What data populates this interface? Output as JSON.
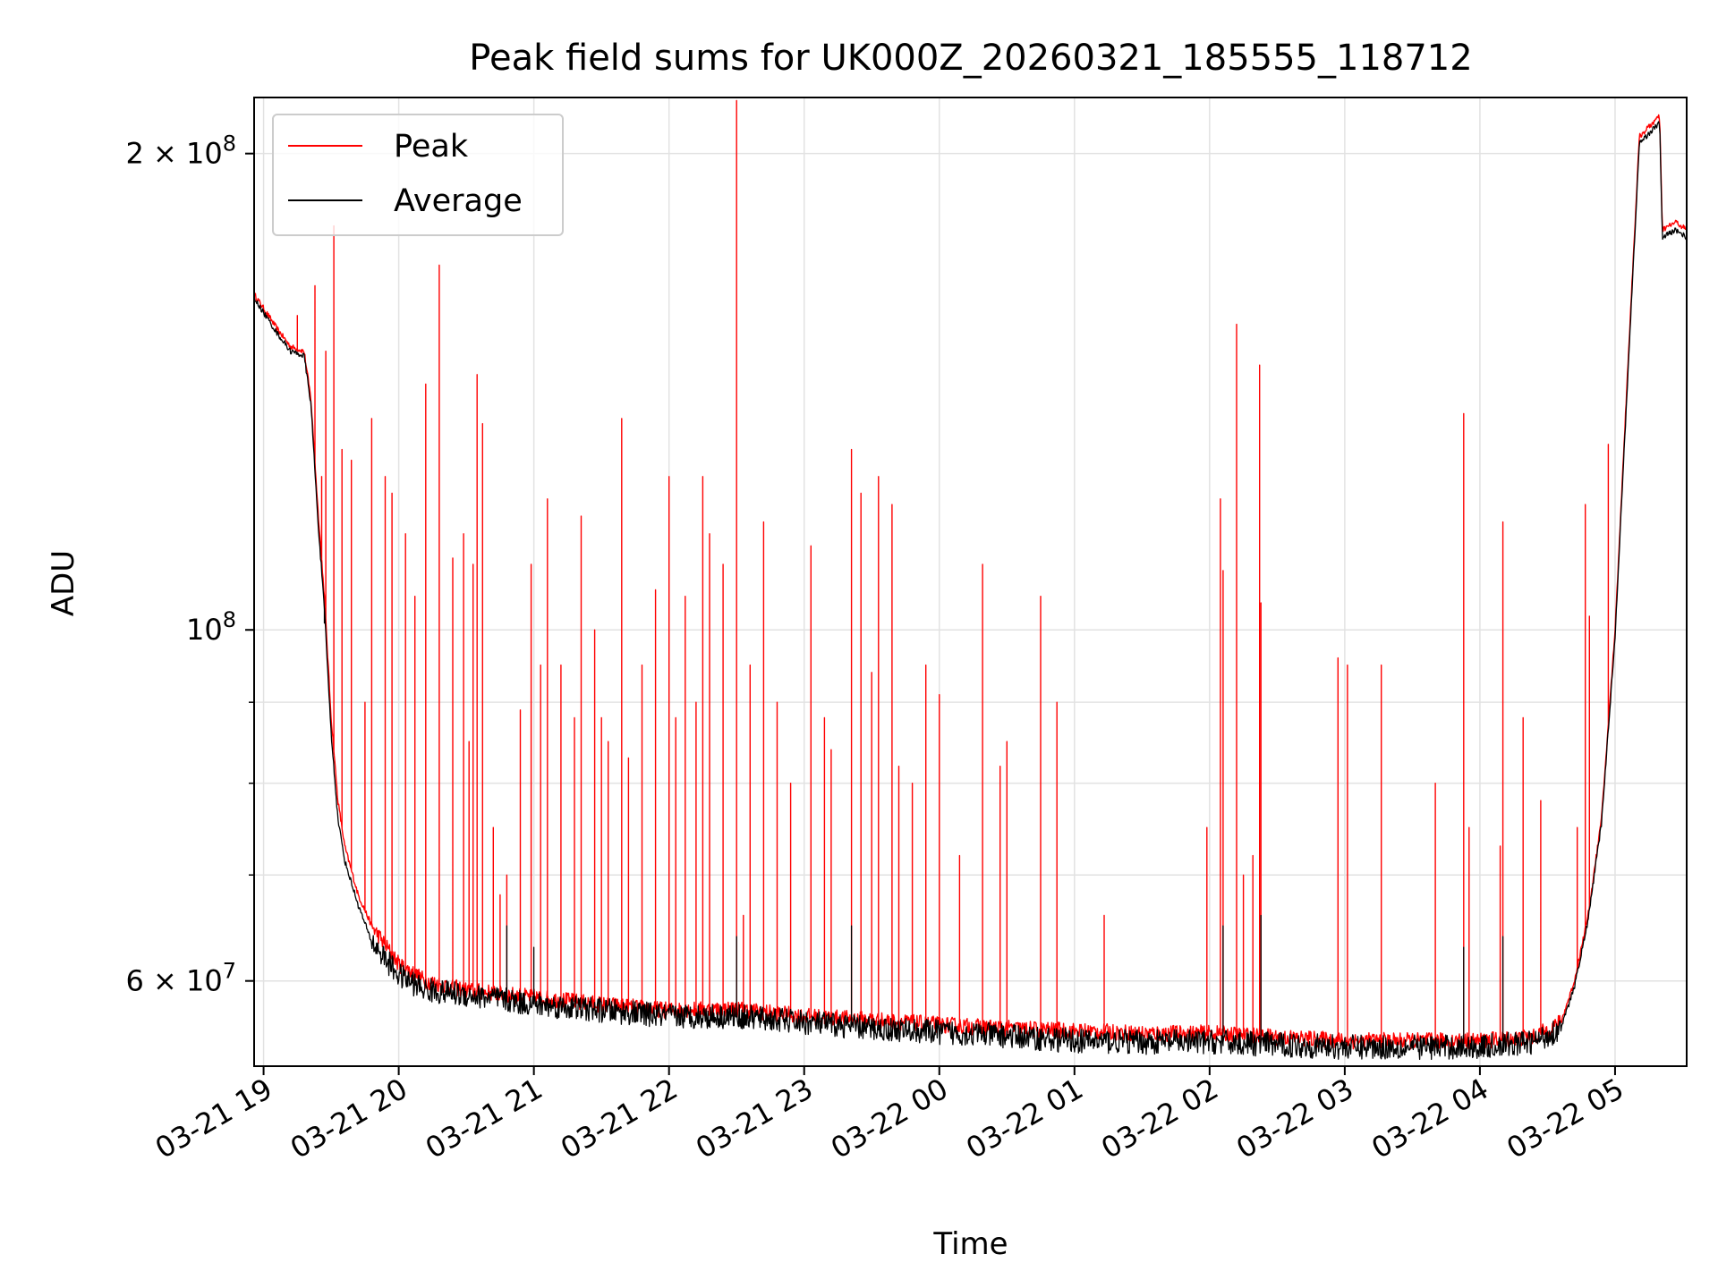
{
  "chart_data": {
    "type": "line",
    "title": "Peak field sums for UK000Z_20260321_185555_118712",
    "xlabel": "Time",
    "ylabel": "ADU",
    "yscale": "log",
    "grid": true,
    "legend_position": "upper-left",
    "x_unit": "hours since 03-21 19:00",
    "xlim": [
      -0.07,
      10.53
    ],
    "ylim": [
      53000000,
      217000000
    ],
    "x_ticks": [
      {
        "value": 0,
        "label": "03-21 19"
      },
      {
        "value": 1,
        "label": "03-21 20"
      },
      {
        "value": 2,
        "label": "03-21 21"
      },
      {
        "value": 3,
        "label": "03-21 22"
      },
      {
        "value": 4,
        "label": "03-21 23"
      },
      {
        "value": 5,
        "label": "03-22 00"
      },
      {
        "value": 6,
        "label": "03-22 01"
      },
      {
        "value": 7,
        "label": "03-22 02"
      },
      {
        "value": 8,
        "label": "03-22 03"
      },
      {
        "value": 9,
        "label": "03-22 04"
      },
      {
        "value": 10,
        "label": "03-22 05"
      }
    ],
    "y_major_ticks": [
      {
        "value": 60000000,
        "base": "6 × 10",
        "exp": "7"
      },
      {
        "value": 100000000,
        "base": "10",
        "exp": "8"
      },
      {
        "value": 200000000,
        "base": "2 × 10",
        "exp": "8"
      }
    ],
    "y_minor_ticks": [
      70000000,
      80000000,
      90000000
    ],
    "series": [
      {
        "name": "Peak",
        "color": "#ff0000",
        "baseline": [
          [
            -0.07,
            163000000
          ],
          [
            0.1,
            155000000
          ],
          [
            0.2,
            151000000
          ],
          [
            0.3,
            150000000
          ],
          [
            0.35,
            140000000
          ],
          [
            0.4,
            120000000
          ],
          [
            0.45,
            105000000
          ],
          [
            0.5,
            88000000
          ],
          [
            0.55,
            78000000
          ],
          [
            0.6,
            73000000
          ],
          [
            0.7,
            68000000
          ],
          [
            0.8,
            65000000
          ],
          [
            1.0,
            61500000
          ],
          [
            1.2,
            60000000
          ],
          [
            1.5,
            59200000
          ],
          [
            2.0,
            58600000
          ],
          [
            2.5,
            58000000
          ],
          [
            3.0,
            57500000
          ],
          [
            3.5,
            57600000
          ],
          [
            4.0,
            57000000
          ],
          [
            4.5,
            56700000
          ],
          [
            5.0,
            56300000
          ],
          [
            5.5,
            56000000
          ],
          [
            6.0,
            55800000
          ],
          [
            6.5,
            55600000
          ],
          [
            7.0,
            55600000
          ],
          [
            7.5,
            55300000
          ],
          [
            8.0,
            55000000
          ],
          [
            8.5,
            55000000
          ],
          [
            9.0,
            55000000
          ],
          [
            9.4,
            55300000
          ],
          [
            9.6,
            56500000
          ],
          [
            9.7,
            60000000
          ],
          [
            9.8,
            66000000
          ],
          [
            9.9,
            76000000
          ],
          [
            10.0,
            100000000
          ],
          [
            10.1,
            150000000
          ],
          [
            10.18,
            205000000
          ],
          [
            10.3,
            210000000
          ],
          [
            10.33,
            211000000
          ],
          [
            10.35,
            179000000
          ],
          [
            10.45,
            181000000
          ],
          [
            10.53,
            179000000
          ]
        ],
        "spikes": [
          [
            0.25,
            158000000
          ],
          [
            0.38,
            165000000
          ],
          [
            0.43,
            125000000
          ],
          [
            0.46,
            150000000
          ],
          [
            0.52,
            180000000
          ],
          [
            0.58,
            130000000
          ],
          [
            0.65,
            128000000
          ],
          [
            0.75,
            90000000
          ],
          [
            0.8,
            136000000
          ],
          [
            0.9,
            125000000
          ],
          [
            0.95,
            122000000
          ],
          [
            1.05,
            115000000
          ],
          [
            1.12,
            105000000
          ],
          [
            1.2,
            143000000
          ],
          [
            1.3,
            170000000
          ],
          [
            1.4,
            111000000
          ],
          [
            1.48,
            115000000
          ],
          [
            1.52,
            85000000
          ],
          [
            1.55,
            110000000
          ],
          [
            1.58,
            145000000
          ],
          [
            1.62,
            135000000
          ],
          [
            1.7,
            75000000
          ],
          [
            1.75,
            68000000
          ],
          [
            1.8,
            70000000
          ],
          [
            1.9,
            89000000
          ],
          [
            1.98,
            110000000
          ],
          [
            2.05,
            95000000
          ],
          [
            2.1,
            121000000
          ],
          [
            2.2,
            95000000
          ],
          [
            2.3,
            88000000
          ],
          [
            2.35,
            118000000
          ],
          [
            2.45,
            100000000
          ],
          [
            2.5,
            88000000
          ],
          [
            2.55,
            85000000
          ],
          [
            2.65,
            136000000
          ],
          [
            2.7,
            83000000
          ],
          [
            2.8,
            95000000
          ],
          [
            2.9,
            106000000
          ],
          [
            3.0,
            125000000
          ],
          [
            3.05,
            88000000
          ],
          [
            3.12,
            105000000
          ],
          [
            3.2,
            90000000
          ],
          [
            3.25,
            125000000
          ],
          [
            3.3,
            115000000
          ],
          [
            3.4,
            110000000
          ],
          [
            3.5,
            216000000
          ],
          [
            3.55,
            66000000
          ],
          [
            3.6,
            95000000
          ],
          [
            3.7,
            117000000
          ],
          [
            3.8,
            90000000
          ],
          [
            3.9,
            80000000
          ],
          [
            4.05,
            113000000
          ],
          [
            4.15,
            88000000
          ],
          [
            4.2,
            84000000
          ],
          [
            4.35,
            130000000
          ],
          [
            4.42,
            122000000
          ],
          [
            4.5,
            94000000
          ],
          [
            4.55,
            125000000
          ],
          [
            4.65,
            120000000
          ],
          [
            4.7,
            82000000
          ],
          [
            4.8,
            80000000
          ],
          [
            4.9,
            95000000
          ],
          [
            5.0,
            91000000
          ],
          [
            5.15,
            72000000
          ],
          [
            5.32,
            110000000
          ],
          [
            5.45,
            82000000
          ],
          [
            5.5,
            85000000
          ],
          [
            5.75,
            105000000
          ],
          [
            5.87,
            90000000
          ],
          [
            6.22,
            66000000
          ],
          [
            6.98,
            75000000
          ],
          [
            7.08,
            121000000
          ],
          [
            7.1,
            109000000
          ],
          [
            7.2,
            156000000
          ],
          [
            7.25,
            70000000
          ],
          [
            7.32,
            72000000
          ],
          [
            7.37,
            147000000
          ],
          [
            7.38,
            104000000
          ],
          [
            7.95,
            96000000
          ],
          [
            8.02,
            95000000
          ],
          [
            8.27,
            95000000
          ],
          [
            8.67,
            80000000
          ],
          [
            8.88,
            137000000
          ],
          [
            8.92,
            75000000
          ],
          [
            9.15,
            73000000
          ],
          [
            9.17,
            117000000
          ],
          [
            9.32,
            88000000
          ],
          [
            9.45,
            78000000
          ],
          [
            9.72,
            75000000
          ],
          [
            9.78,
            120000000
          ],
          [
            9.81,
            102000000
          ],
          [
            9.95,
            131000000
          ]
        ]
      },
      {
        "name": "Average",
        "color": "#000000",
        "baseline": [
          [
            -0.07,
            162000000
          ],
          [
            0.1,
            154000000
          ],
          [
            0.2,
            150000000
          ],
          [
            0.3,
            149000000
          ],
          [
            0.35,
            139000000
          ],
          [
            0.4,
            118000000
          ],
          [
            0.45,
            103000000
          ],
          [
            0.5,
            86000000
          ],
          [
            0.55,
            76000000
          ],
          [
            0.6,
            71500000
          ],
          [
            0.7,
            67000000
          ],
          [
            0.8,
            63500000
          ],
          [
            1.0,
            60500000
          ],
          [
            1.2,
            59200000
          ],
          [
            1.5,
            58800000
          ],
          [
            2.0,
            58000000
          ],
          [
            2.5,
            57500000
          ],
          [
            3.0,
            57000000
          ],
          [
            3.5,
            57000000
          ],
          [
            4.0,
            56500000
          ],
          [
            4.5,
            56000000
          ],
          [
            5.0,
            55700000
          ],
          [
            5.5,
            55400000
          ],
          [
            6.0,
            55000000
          ],
          [
            6.5,
            54900000
          ],
          [
            7.0,
            54900000
          ],
          [
            7.5,
            54700000
          ],
          [
            8.0,
            54500000
          ],
          [
            8.5,
            54500000
          ],
          [
            9.0,
            54500000
          ],
          [
            9.4,
            54900000
          ],
          [
            9.6,
            56000000
          ],
          [
            9.7,
            59500000
          ],
          [
            9.8,
            65500000
          ],
          [
            9.9,
            75500000
          ],
          [
            10.0,
            99000000
          ],
          [
            10.1,
            148000000
          ],
          [
            10.18,
            203000000
          ],
          [
            10.3,
            208000000
          ],
          [
            10.33,
            209000000
          ],
          [
            10.35,
            177000000
          ],
          [
            10.45,
            179000000
          ],
          [
            10.53,
            177000000
          ]
        ],
        "spikes": [
          [
            0.45,
            101000000
          ],
          [
            1.8,
            65000000
          ],
          [
            2.0,
            63000000
          ],
          [
            3.5,
            64000000
          ],
          [
            4.35,
            65000000
          ],
          [
            7.1,
            65000000
          ],
          [
            7.38,
            66000000
          ],
          [
            8.88,
            63000000
          ],
          [
            9.17,
            64000000
          ]
        ]
      }
    ]
  }
}
